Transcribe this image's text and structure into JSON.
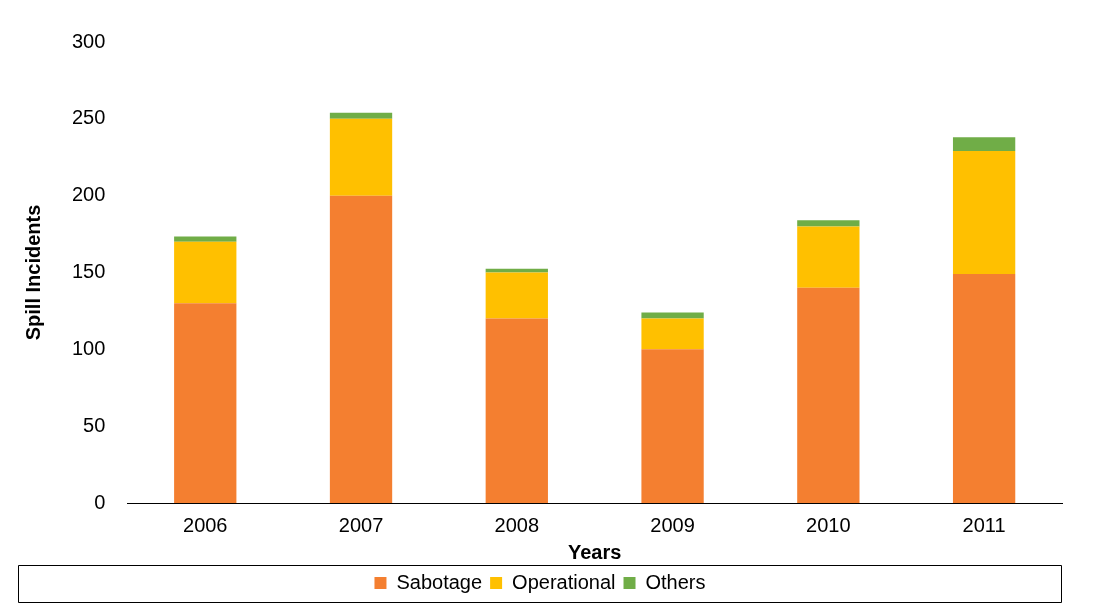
{
  "chart_data": {
    "type": "bar",
    "stacked": true,
    "xlabel": "Years",
    "ylabel": "Spill Incidents",
    "categories": [
      "2006",
      "2007",
      "2008",
      "2009",
      "2010",
      "2011"
    ],
    "series": [
      {
        "name": "Sabotage",
        "color": "#f47f30",
        "values": [
          130,
          200,
          120,
          100,
          140,
          149
        ]
      },
      {
        "name": "Operational",
        "color": "#ffc000",
        "values": [
          40,
          50,
          30,
          20,
          40,
          80
        ]
      },
      {
        "name": "Others",
        "color": "#70ad47",
        "values": [
          3.5,
          4,
          2.5,
          4,
          4,
          9
        ]
      }
    ],
    "ylim": [
      0,
      300
    ],
    "yticks": [
      0,
      50,
      100,
      150,
      200,
      250,
      300
    ],
    "grid": false,
    "legend": "bottom"
  }
}
